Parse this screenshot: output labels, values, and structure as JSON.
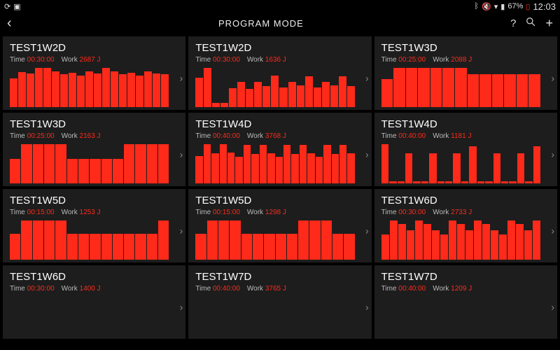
{
  "colors": {
    "accent": "#ff2a1a",
    "card_bg": "#1d1d1d",
    "bg": "#000000"
  },
  "status": {
    "left_icons": [
      "sync-icon",
      "screenshot-icon"
    ],
    "right_icons": [
      "bluetooth-icon",
      "mute-icon",
      "wifi-icon",
      "signal-icon"
    ],
    "battery": "67%",
    "time": "12:03"
  },
  "header": {
    "title": "PROGRAM MODE",
    "back_icon": "‹",
    "actions": [
      "help-icon",
      "search-icon",
      "add-icon"
    ]
  },
  "labels": {
    "time": "Time",
    "work": "Work"
  },
  "cards": [
    {
      "title": "TEST1W2D",
      "time": "00:30:00",
      "work": "2687 J",
      "chart": {
        "type": "bar",
        "bar_color": "#ff2a1a",
        "values": [
          70,
          86,
          82,
          96,
          96,
          88,
          80,
          84,
          78,
          88,
          82,
          96,
          88,
          80,
          84,
          78,
          88,
          82,
          80
        ]
      }
    },
    {
      "title": "TEST1W2D",
      "time": "00:30:00",
      "work": "1636 J",
      "chart": {
        "type": "bar",
        "bar_color": "#ff2a1a",
        "values": [
          72,
          96,
          10,
          10,
          46,
          62,
          44,
          62,
          52,
          78,
          48,
          62,
          54,
          76,
          48,
          62,
          54,
          76,
          52
        ]
      }
    },
    {
      "title": "TEST1W3D",
      "time": "00:25:00",
      "work": "2088 J",
      "chart": {
        "type": "bar",
        "bar_color": "#ff2a1a",
        "values": [
          68,
          96,
          96,
          96,
          96,
          96,
          96,
          80,
          80,
          80,
          80,
          80,
          80
        ]
      }
    },
    {
      "title": "TEST1W3D",
      "time": "00:25:00",
      "work": "2163 J",
      "chart": {
        "type": "bar",
        "bar_color": "#ff2a1a",
        "values": [
          60,
          96,
          96,
          96,
          96,
          60,
          60,
          60,
          60,
          60,
          96,
          96,
          96,
          96
        ]
      }
    },
    {
      "title": "TEST1W4D",
      "time": "00:40:00",
      "work": "3768 J",
      "chart": {
        "type": "bar",
        "bar_color": "#ff2a1a",
        "values": [
          66,
          94,
          72,
          94,
          74,
          64,
          92,
          70,
          92,
          72,
          64,
          92,
          70,
          92,
          72,
          64,
          92,
          70,
          92,
          72
        ]
      }
    },
    {
      "title": "TEST1W4D",
      "time": "00:40:00",
      "work": "1181 J",
      "chart": {
        "type": "bar",
        "bar_color": "#ff2a1a",
        "values": [
          80,
          5,
          5,
          62,
          5,
          5,
          62,
          5,
          5,
          62,
          5,
          76,
          5,
          5,
          62,
          5,
          5,
          62,
          5,
          76
        ]
      }
    },
    {
      "title": "TEST1W5D",
      "time": "00:15:00",
      "work": "1253 J",
      "chart": {
        "type": "bar",
        "bar_color": "#ff2a1a",
        "values": [
          64,
          96,
          96,
          96,
          96,
          64,
          64,
          64,
          64,
          64,
          64,
          64,
          64,
          96
        ]
      }
    },
    {
      "title": "TEST1W5D",
      "time": "00:15:00",
      "work": "1298 J",
      "chart": {
        "type": "bar",
        "bar_color": "#ff2a1a",
        "values": [
          64,
          96,
          96,
          96,
          64,
          64,
          64,
          64,
          64,
          96,
          96,
          96,
          64,
          64
        ]
      }
    },
    {
      "title": "TEST1W6D",
      "time": "00:30:00",
      "work": "2733 J",
      "chart": {
        "type": "bar",
        "bar_color": "#ff2a1a",
        "values": [
          62,
          96,
          88,
          72,
          96,
          88,
          72,
          62,
          96,
          88,
          72,
          96,
          88,
          72,
          62,
          96,
          88,
          72,
          96
        ]
      }
    },
    {
      "title": "TEST1W6D",
      "time": "00:30:00",
      "work": "1400 J",
      "chart": {
        "type": "bar",
        "bar_color": "#ff2a1a",
        "values": []
      }
    },
    {
      "title": "TEST1W7D",
      "time": "00:40:00",
      "work": "3765 J",
      "chart": {
        "type": "bar",
        "bar_color": "#ff2a1a",
        "values": []
      }
    },
    {
      "title": "TEST1W7D",
      "time": "00:40:00",
      "work": "1209 J",
      "chart": {
        "type": "bar",
        "bar_color": "#ff2a1a",
        "values": []
      }
    }
  ]
}
